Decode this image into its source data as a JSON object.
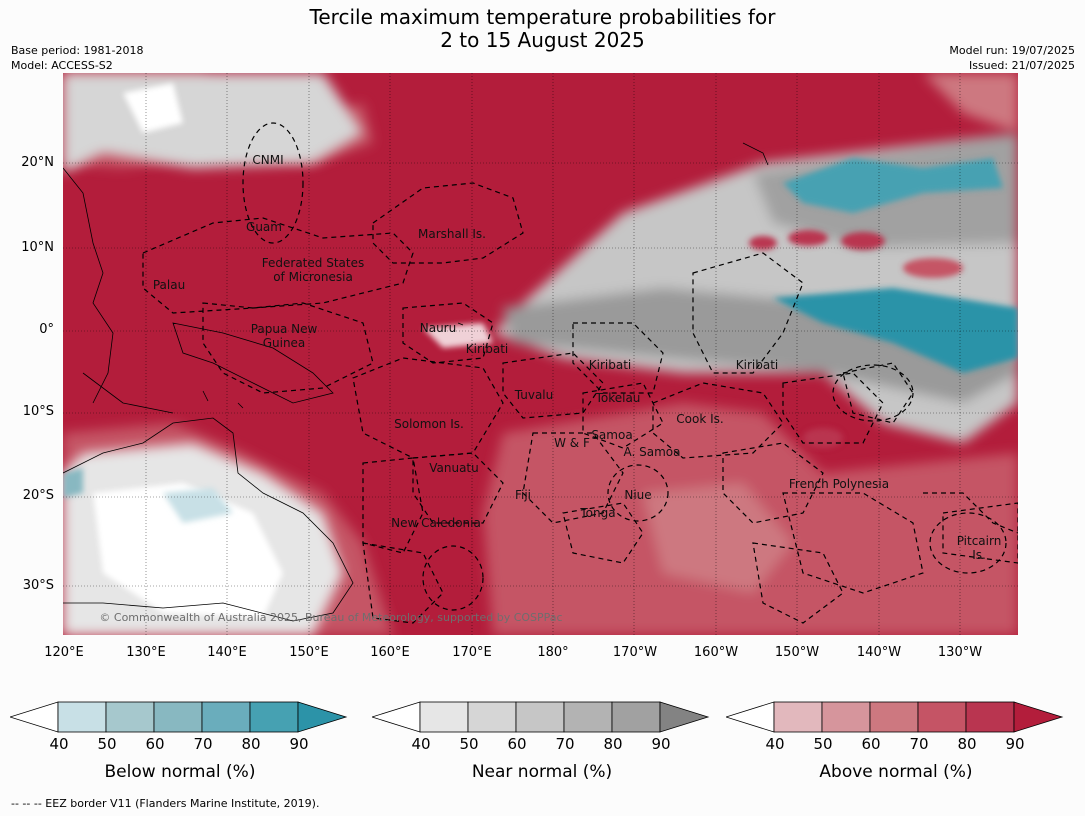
{
  "title": "Tercile maximum temperature probabilities for\n2 to 15 August 2025",
  "meta": {
    "base_period": "Base period: 1981-2018",
    "model": "Model: ACCESS-S2",
    "model_run": "Model run: 19/07/2025",
    "issued": "Issued: 21/07/2025"
  },
  "map": {
    "copyright": "© Commonwealth of Australia 2025, Bureau of Meteorology, supported by COSPPac",
    "lat_ticks": [
      "20°N",
      "10°N",
      "0°",
      "10°S",
      "20°S",
      "30°S"
    ],
    "lon_ticks": [
      "120°E",
      "130°E",
      "140°E",
      "150°E",
      "160°E",
      "170°E",
      "180°",
      "170°W",
      "160°W",
      "150°W",
      "140°W",
      "130°W"
    ],
    "regions": [
      "CNMI",
      "Guam",
      "Marshall Is.",
      "Federated States\nof Micronesia",
      "Palau",
      "Papua New\nGuinea",
      "Nauru",
      "Kiribati",
      "Kiribati",
      "Kiribati",
      "Tuvalu",
      "Tokelau",
      "Cook Is.",
      "Solomon Is.",
      "W & F",
      "Samoa",
      "A. Samoa",
      "Vanuatu",
      "Fiji",
      "Niue",
      "French Polynesia",
      "Tonga",
      "New Caledonia",
      "Pitcairn\nIs."
    ],
    "colors": {
      "above": "#b31d3b",
      "near": "#8c8c8c",
      "below": "#2c93a8",
      "low_prob": "#ffffff"
    }
  },
  "colorbars": [
    {
      "title": "Below normal (%)",
      "ticks": [
        "40",
        "50",
        "60",
        "70",
        "80",
        "90"
      ],
      "colors": [
        "#c8e0e6",
        "#a6c8cd",
        "#88b8c1",
        "#6aadbc",
        "#46a1b2",
        "#2c93a8"
      ]
    },
    {
      "title": "Near normal (%)",
      "ticks": [
        "40",
        "50",
        "60",
        "70",
        "80",
        "90"
      ],
      "colors": [
        "#e6e6e6",
        "#d6d6d6",
        "#c6c6c6",
        "#b3b3b3",
        "#a1a1a1",
        "#838383"
      ]
    },
    {
      "title": "Above normal (%)",
      "ticks": [
        "40",
        "50",
        "60",
        "70",
        "80",
        "90"
      ],
      "colors": [
        "#e2b8bd",
        "#d6959c",
        "#cd7880",
        "#c55465",
        "#b93550",
        "#b31d3b"
      ]
    }
  ],
  "footer": "--  --  -- EEZ border V11 (Flanders Marine Institute, 2019)."
}
